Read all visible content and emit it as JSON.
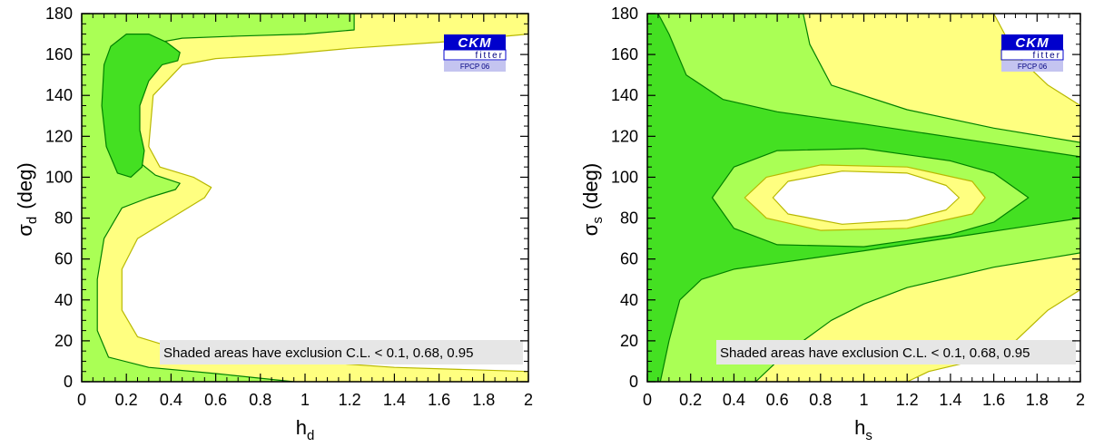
{
  "colors": {
    "level_095": "#ffff80",
    "level_068": "#aaff55",
    "level_01": "#44e022",
    "contour_yellow": "#b8b800",
    "contour_green": "#008000",
    "note_bg": "#e6e6e6",
    "logo_blue": "#0000cc",
    "logo_light": "#c4c4f0"
  },
  "logo": {
    "main": "CKM",
    "sub": "fitter",
    "tag": "FPCP 06"
  },
  "chart_data": [
    {
      "type": "contour",
      "id": "left",
      "xlabel": "h",
      "xlabel_sub": "d",
      "ylabel": "σ",
      "ylabel_sub": "d",
      "ylabel_unit": "(deg)",
      "xlim": [
        0,
        2
      ],
      "ylim": [
        0,
        180
      ],
      "xticks": [
        "0",
        "0.2",
        "0.4",
        "0.6",
        "0.8",
        "1",
        "1.2",
        "1.4",
        "1.6",
        "1.8",
        "2"
      ],
      "yticks": [
        "0",
        "20",
        "40",
        "60",
        "80",
        "100",
        "120",
        "140",
        "160",
        "180"
      ],
      "levels": [
        "0.95",
        "0.68",
        "0.1"
      ],
      "annotation": "Shaded areas have exclusion C.L. < 0.1, 0.68, 0.95",
      "regions": [
        {
          "name": "cl-095-region",
          "level": "0.95",
          "outline": [
            [
              0,
              0
            ],
            [
              0,
              180
            ],
            [
              2,
              180
            ],
            [
              2,
              170
            ],
            [
              1.6,
              166
            ],
            [
              1.2,
              163
            ],
            [
              0.9,
              160
            ],
            [
              0.6,
              158
            ],
            [
              0.45,
              155
            ],
            [
              0.32,
              140
            ],
            [
              0.3,
              115
            ],
            [
              0.35,
              105
            ],
            [
              0.5,
              100
            ],
            [
              0.58,
              95
            ],
            [
              0.55,
              90
            ],
            [
              0.4,
              80
            ],
            [
              0.25,
              70
            ],
            [
              0.18,
              55
            ],
            [
              0.18,
              35
            ],
            [
              0.25,
              22
            ],
            [
              0.4,
              17
            ],
            [
              0.7,
              13
            ],
            [
              1,
              10
            ],
            [
              1.4,
              7
            ],
            [
              2,
              5
            ],
            [
              2,
              0
            ]
          ]
        },
        {
          "name": "cl-068-region",
          "level": "0.68",
          "outline": [
            [
              0,
              0
            ],
            [
              0,
              180
            ],
            [
              1.22,
              180
            ],
            [
              1.22,
              172
            ],
            [
              1,
              170
            ],
            [
              0.7,
              169
            ],
            [
              0.45,
              168
            ],
            [
              0.3,
              165
            ],
            [
              0.23,
              150
            ],
            [
              0.22,
              125
            ],
            [
              0.25,
              108
            ],
            [
              0.33,
              101
            ],
            [
              0.44,
              97
            ],
            [
              0.42,
              94
            ],
            [
              0.3,
              90
            ],
            [
              0.18,
              85
            ],
            [
              0.1,
              70
            ],
            [
              0.07,
              50
            ],
            [
              0.07,
              25
            ],
            [
              0.12,
              12
            ],
            [
              0.3,
              7
            ],
            [
              0.6,
              4
            ],
            [
              0.95,
              0
            ]
          ]
        },
        {
          "name": "cl-01-region",
          "level": "0.1",
          "outline": [
            [
              0.1,
              155
            ],
            [
              0.13,
              164
            ],
            [
              0.2,
              170
            ],
            [
              0.3,
              170
            ],
            [
              0.38,
              166
            ],
            [
              0.44,
              161
            ],
            [
              0.43,
              157
            ],
            [
              0.36,
              155
            ],
            [
              0.3,
              147
            ],
            [
              0.26,
              135
            ],
            [
              0.26,
              123
            ],
            [
              0.28,
              113
            ],
            [
              0.27,
              105
            ],
            [
              0.22,
              100
            ],
            [
              0.16,
              102
            ],
            [
              0.11,
              115
            ],
            [
              0.09,
              135
            ]
          ]
        }
      ]
    },
    {
      "type": "contour",
      "id": "right",
      "xlabel": "h",
      "xlabel_sub": "s",
      "ylabel": "σ",
      "ylabel_sub": "s",
      "ylabel_unit": "(deg)",
      "xlim": [
        0,
        2
      ],
      "ylim": [
        0,
        180
      ],
      "xticks": [
        "0",
        "0.2",
        "0.4",
        "0.6",
        "0.8",
        "1",
        "1.2",
        "1.4",
        "1.6",
        "1.8",
        "2"
      ],
      "yticks": [
        "0",
        "20",
        "40",
        "60",
        "80",
        "100",
        "120",
        "140",
        "160",
        "180"
      ],
      "levels": [
        "0.95",
        "0.68",
        "0.1"
      ],
      "annotation": "Shaded areas have exclusion C.L. < 0.1, 0.68, 0.95",
      "regions": [
        {
          "name": "cl-095-region",
          "level": "0.95",
          "outline": [
            [
              0,
              0
            ],
            [
              0,
              180
            ],
            [
              1.6,
              180
            ],
            [
              1.7,
              160
            ],
            [
              1.85,
              145
            ],
            [
              2,
              135
            ],
            [
              2,
              45
            ],
            [
              1.85,
              35
            ],
            [
              1.7,
              20
            ],
            [
              1.5,
              10
            ],
            [
              1.3,
              5
            ],
            [
              1.2,
              0
            ]
          ]
        },
        {
          "name": "cl-068-region",
          "level": "0.68",
          "outline": [
            [
              0,
              0
            ],
            [
              0,
              180
            ],
            [
              0.72,
              180
            ],
            [
              0.75,
              165
            ],
            [
              0.85,
              145
            ],
            [
              1.2,
              133
            ],
            [
              1.6,
              124
            ],
            [
              2,
              117
            ],
            [
              2,
              63
            ],
            [
              1.6,
              56
            ],
            [
              1.2,
              46
            ],
            [
              1,
              38
            ],
            [
              0.85,
              30
            ],
            [
              0.72,
              20
            ],
            [
              0.6,
              10
            ],
            [
              0.5,
              0
            ]
          ]
        },
        {
          "name": "cl-01-region",
          "level": "0.1",
          "outline": [
            [
              0,
              0
            ],
            [
              0,
              180
            ],
            [
              0.05,
              180
            ],
            [
              0.1,
              170
            ],
            [
              0.18,
              150
            ],
            [
              0.35,
              138
            ],
            [
              0.6,
              132
            ],
            [
              1,
              126
            ],
            [
              1.5,
              118
            ],
            [
              2,
              110
            ],
            [
              2,
              80
            ],
            [
              1.5,
              72
            ],
            [
              1,
              64
            ],
            [
              0.6,
              58
            ],
            [
              0.4,
              55
            ],
            [
              0.25,
              50
            ],
            [
              0.15,
              40
            ],
            [
              0.1,
              20
            ],
            [
              0.06,
              0
            ]
          ]
        },
        {
          "name": "inner-068-ring",
          "level": "0.68",
          "outline": [
            [
              0.3,
              90
            ],
            [
              0.4,
              105
            ],
            [
              0.6,
              113
            ],
            [
              1,
              114
            ],
            [
              1.4,
              108
            ],
            [
              1.6,
              102
            ],
            [
              1.76,
              90
            ],
            [
              1.6,
              78
            ],
            [
              1.4,
              72
            ],
            [
              1,
              66
            ],
            [
              0.6,
              67
            ],
            [
              0.4,
              75
            ]
          ]
        },
        {
          "name": "inner-095-ring",
          "level": "0.95",
          "outline": [
            [
              0.45,
              90
            ],
            [
              0.55,
              100
            ],
            [
              0.8,
              106
            ],
            [
              1.2,
              105
            ],
            [
              1.5,
              98
            ],
            [
              1.56,
              90
            ],
            [
              1.5,
              82
            ],
            [
              1.2,
              75
            ],
            [
              0.8,
              74
            ],
            [
              0.55,
              80
            ]
          ]
        },
        {
          "name": "inner-allowed-hole",
          "level": "none",
          "outline": [
            [
              0.58,
              90
            ],
            [
              0.65,
              98
            ],
            [
              0.9,
              103
            ],
            [
              1.2,
              102
            ],
            [
              1.38,
              96
            ],
            [
              1.44,
              90
            ],
            [
              1.38,
              84
            ],
            [
              1.2,
              79
            ],
            [
              0.9,
              77
            ],
            [
              0.65,
              82
            ]
          ]
        }
      ]
    }
  ]
}
